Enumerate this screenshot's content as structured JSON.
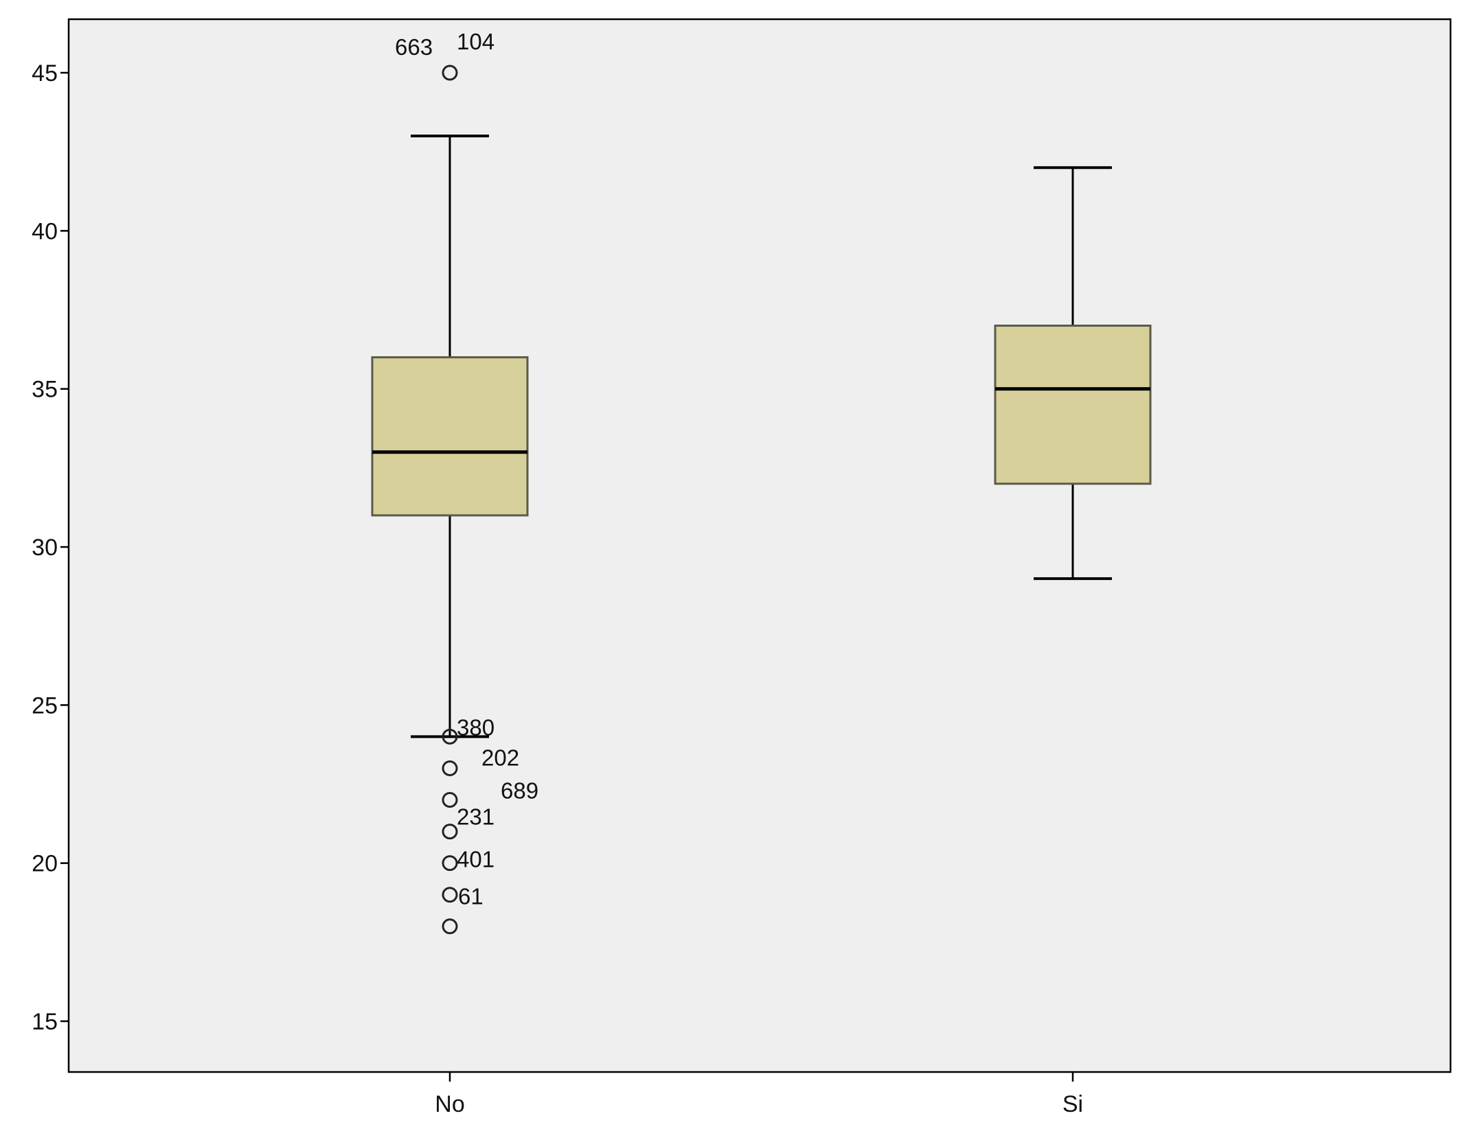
{
  "chart_data": {
    "type": "box",
    "title": "",
    "xlabel": "",
    "ylabel": "",
    "ylim": [
      13.4,
      46.7
    ],
    "yticks": [
      15,
      20,
      25,
      30,
      35,
      40,
      45
    ],
    "grid": false,
    "categories": [
      "No",
      "Si"
    ],
    "boxes": [
      {
        "category": "No",
        "whisker_low": 24,
        "q1": 31,
        "median": 33,
        "q3": 36,
        "whisker_high": 43,
        "outliers": [
          {
            "value": 45,
            "labels": [
              "663",
              "104"
            ]
          },
          {
            "value": 24,
            "labels": [
              "380"
            ]
          },
          {
            "value": 23,
            "labels": [
              "202"
            ]
          },
          {
            "value": 22,
            "labels": [
              "689"
            ]
          },
          {
            "value": 21,
            "labels": [
              "231"
            ]
          },
          {
            "value": 20,
            "labels": [
              "401"
            ]
          },
          {
            "value": 19,
            "labels": [
              "61"
            ]
          },
          {
            "value": 18,
            "labels": []
          }
        ]
      },
      {
        "category": "Si",
        "whisker_low": 29,
        "q1": 32,
        "median": 35,
        "q3": 37,
        "whisker_high": 42,
        "outliers": []
      }
    ],
    "colors": {
      "plot_background": "#efefef",
      "box_fill": "#d8d09a",
      "box_stroke": "#5a5a4a",
      "line": "#000000"
    }
  }
}
